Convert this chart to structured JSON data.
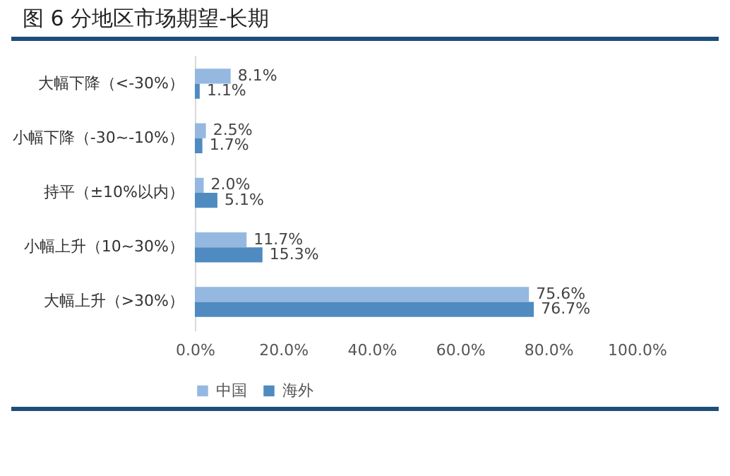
{
  "chart_data": {
    "type": "bar",
    "orientation": "horizontal",
    "title": "图 6 分地区市场期望-长期",
    "categories": [
      "大幅下降（<-30%）",
      "小幅下降（-30~-10%）",
      "持平（±10%以内）",
      "小幅上升（10~30%）",
      "大幅上升（>30%）"
    ],
    "series": [
      {
        "name": "中国",
        "color": "#95b8e0",
        "values": [
          8.1,
          2.5,
          2.0,
          11.7,
          75.6
        ],
        "value_labels": [
          "8.1%",
          "2.5%",
          "2.0%",
          "11.7%",
          "75.6%"
        ]
      },
      {
        "name": "海外",
        "color": "#4f8bc0",
        "values": [
          1.1,
          1.7,
          5.1,
          15.3,
          76.7
        ],
        "value_labels": [
          "1.1%",
          "1.7%",
          "5.1%",
          "15.3%",
          "76.7%"
        ]
      }
    ],
    "xlim": [
      0,
      100
    ],
    "xticks": [
      {
        "value": 0,
        "label": "0.0%"
      },
      {
        "value": 20,
        "label": "20.0%"
      },
      {
        "value": 40,
        "label": "40.0%"
      },
      {
        "value": 60,
        "label": "60.0%"
      },
      {
        "value": 80,
        "label": "80.0%"
      },
      {
        "value": 100,
        "label": "100.0%"
      }
    ],
    "legend": "bottom",
    "grid": false
  }
}
